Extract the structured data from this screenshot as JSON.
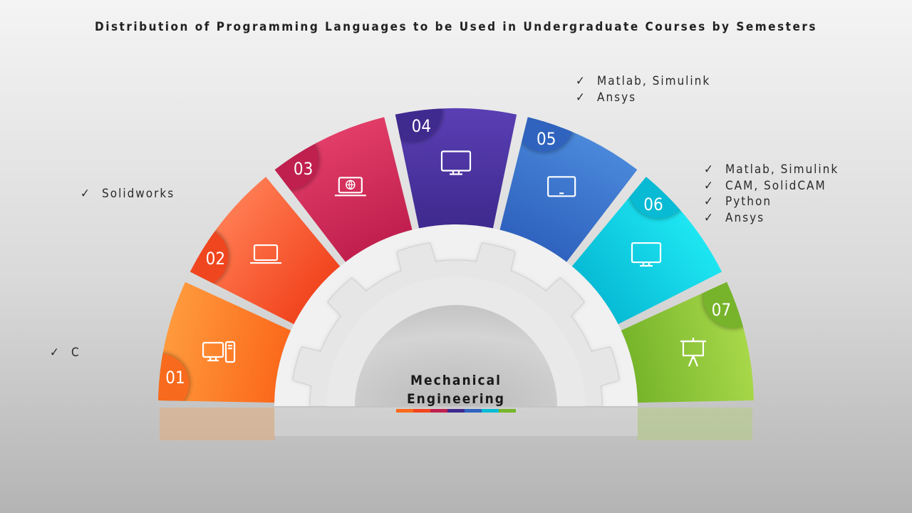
{
  "title": "Distribution of Programming Languages to be Used in Undergraduate Courses by Semesters",
  "center": {
    "line1": "Mechanical",
    "line2": "Engineering"
  },
  "check_mark": "✓",
  "lists": {
    "semester1": [
      "C"
    ],
    "semester2": [
      "Solidworks"
    ],
    "semester4": [
      "Matlab, Simulink",
      "Ansys"
    ],
    "semester6": [
      "Matlab, Simulink",
      "CAM, SolidCAM",
      "Python",
      "Ansys"
    ]
  },
  "segments": [
    {
      "number": "01",
      "icon": "desktop-computer-icon",
      "color_light": "#ff9a3c",
      "color_dark": "#fb6a1c"
    },
    {
      "number": "02",
      "icon": "laptop-icon",
      "color_light": "#ff7b52",
      "color_dark": "#f2461f"
    },
    {
      "number": "03",
      "icon": "laptop-globe-icon",
      "color_light": "#e23d68",
      "color_dark": "#c1204e"
    },
    {
      "number": "04",
      "icon": "monitor-icon",
      "color_light": "#5a3fb4",
      "color_dark": "#3f2a8f"
    },
    {
      "number": "05",
      "icon": "tablet-icon",
      "color_light": "#4a88da",
      "color_dark": "#2f63bf"
    },
    {
      "number": "06",
      "icon": "monitor-icon",
      "color_light": "#1ee6f2",
      "color_dark": "#08bcd6"
    },
    {
      "number": "07",
      "icon": "presentation-board-icon",
      "color_light": "#a8d84a",
      "color_dark": "#77b52b"
    }
  ]
}
